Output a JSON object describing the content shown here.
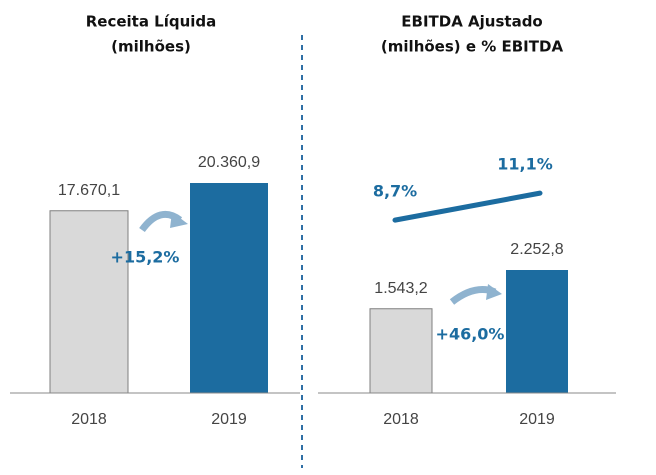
{
  "chart_data": [
    {
      "type": "bar",
      "title": [
        "Receita Líquida",
        "(milhões)"
      ],
      "categories": [
        "2018",
        "2019"
      ],
      "values": [
        17670.1,
        20360.9
      ],
      "value_labels": [
        "17.670,1",
        "20.360,9"
      ],
      "colors": [
        "#d9d9d9",
        "#1c6ca0"
      ],
      "annotation": "+15,2%"
    },
    {
      "type": "bar",
      "title": [
        "EBITDA Ajustado",
        "(milhões) e % EBITDA"
      ],
      "categories": [
        "2018",
        "2019"
      ],
      "values": [
        1543.2,
        2252.8
      ],
      "value_labels": [
        "1.543,2",
        "2.252,8"
      ],
      "colors": [
        "#d9d9d9",
        "#1c6ca0"
      ],
      "annotation": "+46,0%",
      "line": {
        "values": [
          8.7,
          11.1
        ],
        "value_labels": [
          "8,7%",
          "11,1%"
        ],
        "color": "#1c6ca0"
      }
    }
  ]
}
